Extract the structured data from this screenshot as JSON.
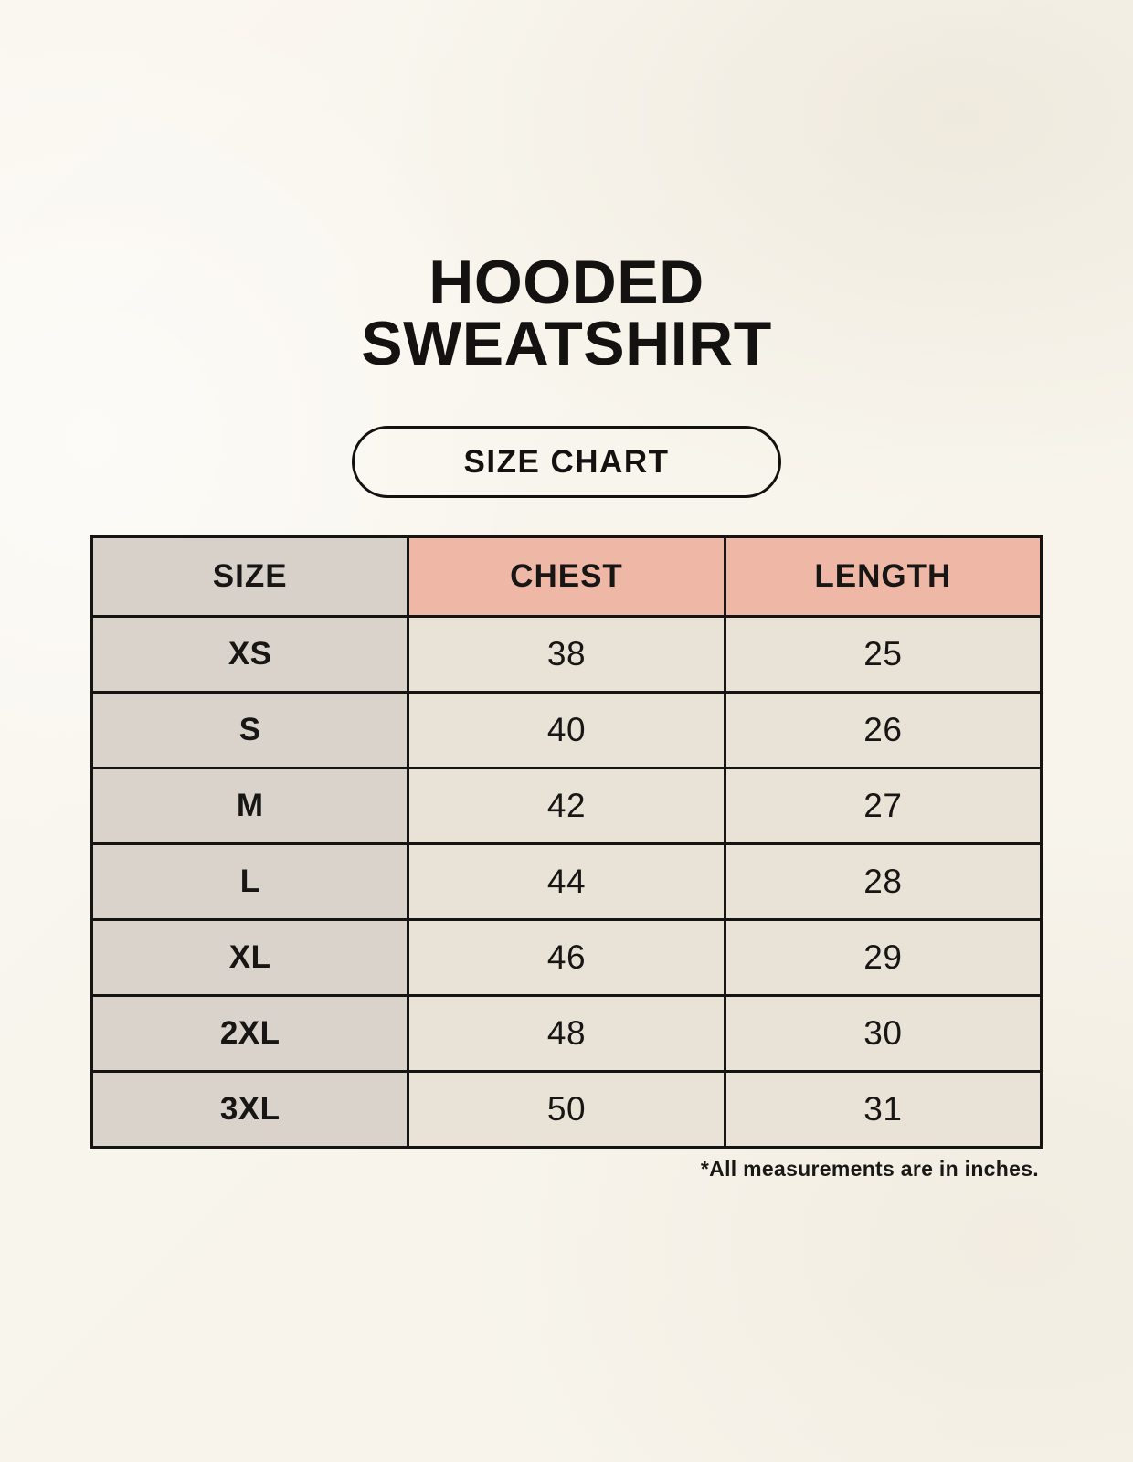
{
  "header": {
    "title_line1": "HOODED",
    "title_line2": "SWEATSHIRT",
    "badge_label": "SIZE CHART"
  },
  "chart_data": {
    "type": "table",
    "title": "HOODED SWEATSHIRT SIZE CHART",
    "columns": [
      "SIZE",
      "CHEST",
      "LENGTH"
    ],
    "rows": [
      [
        "XS",
        "38",
        "25"
      ],
      [
        "S",
        "40",
        "26"
      ],
      [
        "M",
        "42",
        "27"
      ],
      [
        "L",
        "44",
        "28"
      ],
      [
        "XL",
        "46",
        "29"
      ],
      [
        "2XL",
        "48",
        "30"
      ],
      [
        "3XL",
        "50",
        "31"
      ]
    ],
    "units_note": "*All measurements are in inches."
  },
  "colors": {
    "background": "#f8f5ee",
    "header_accent_salmon": "#efb8a6",
    "size_column_taupe": "#d8d2cb",
    "data_cell_cream": "#e9e3d7",
    "border_and_text": "#161412"
  }
}
